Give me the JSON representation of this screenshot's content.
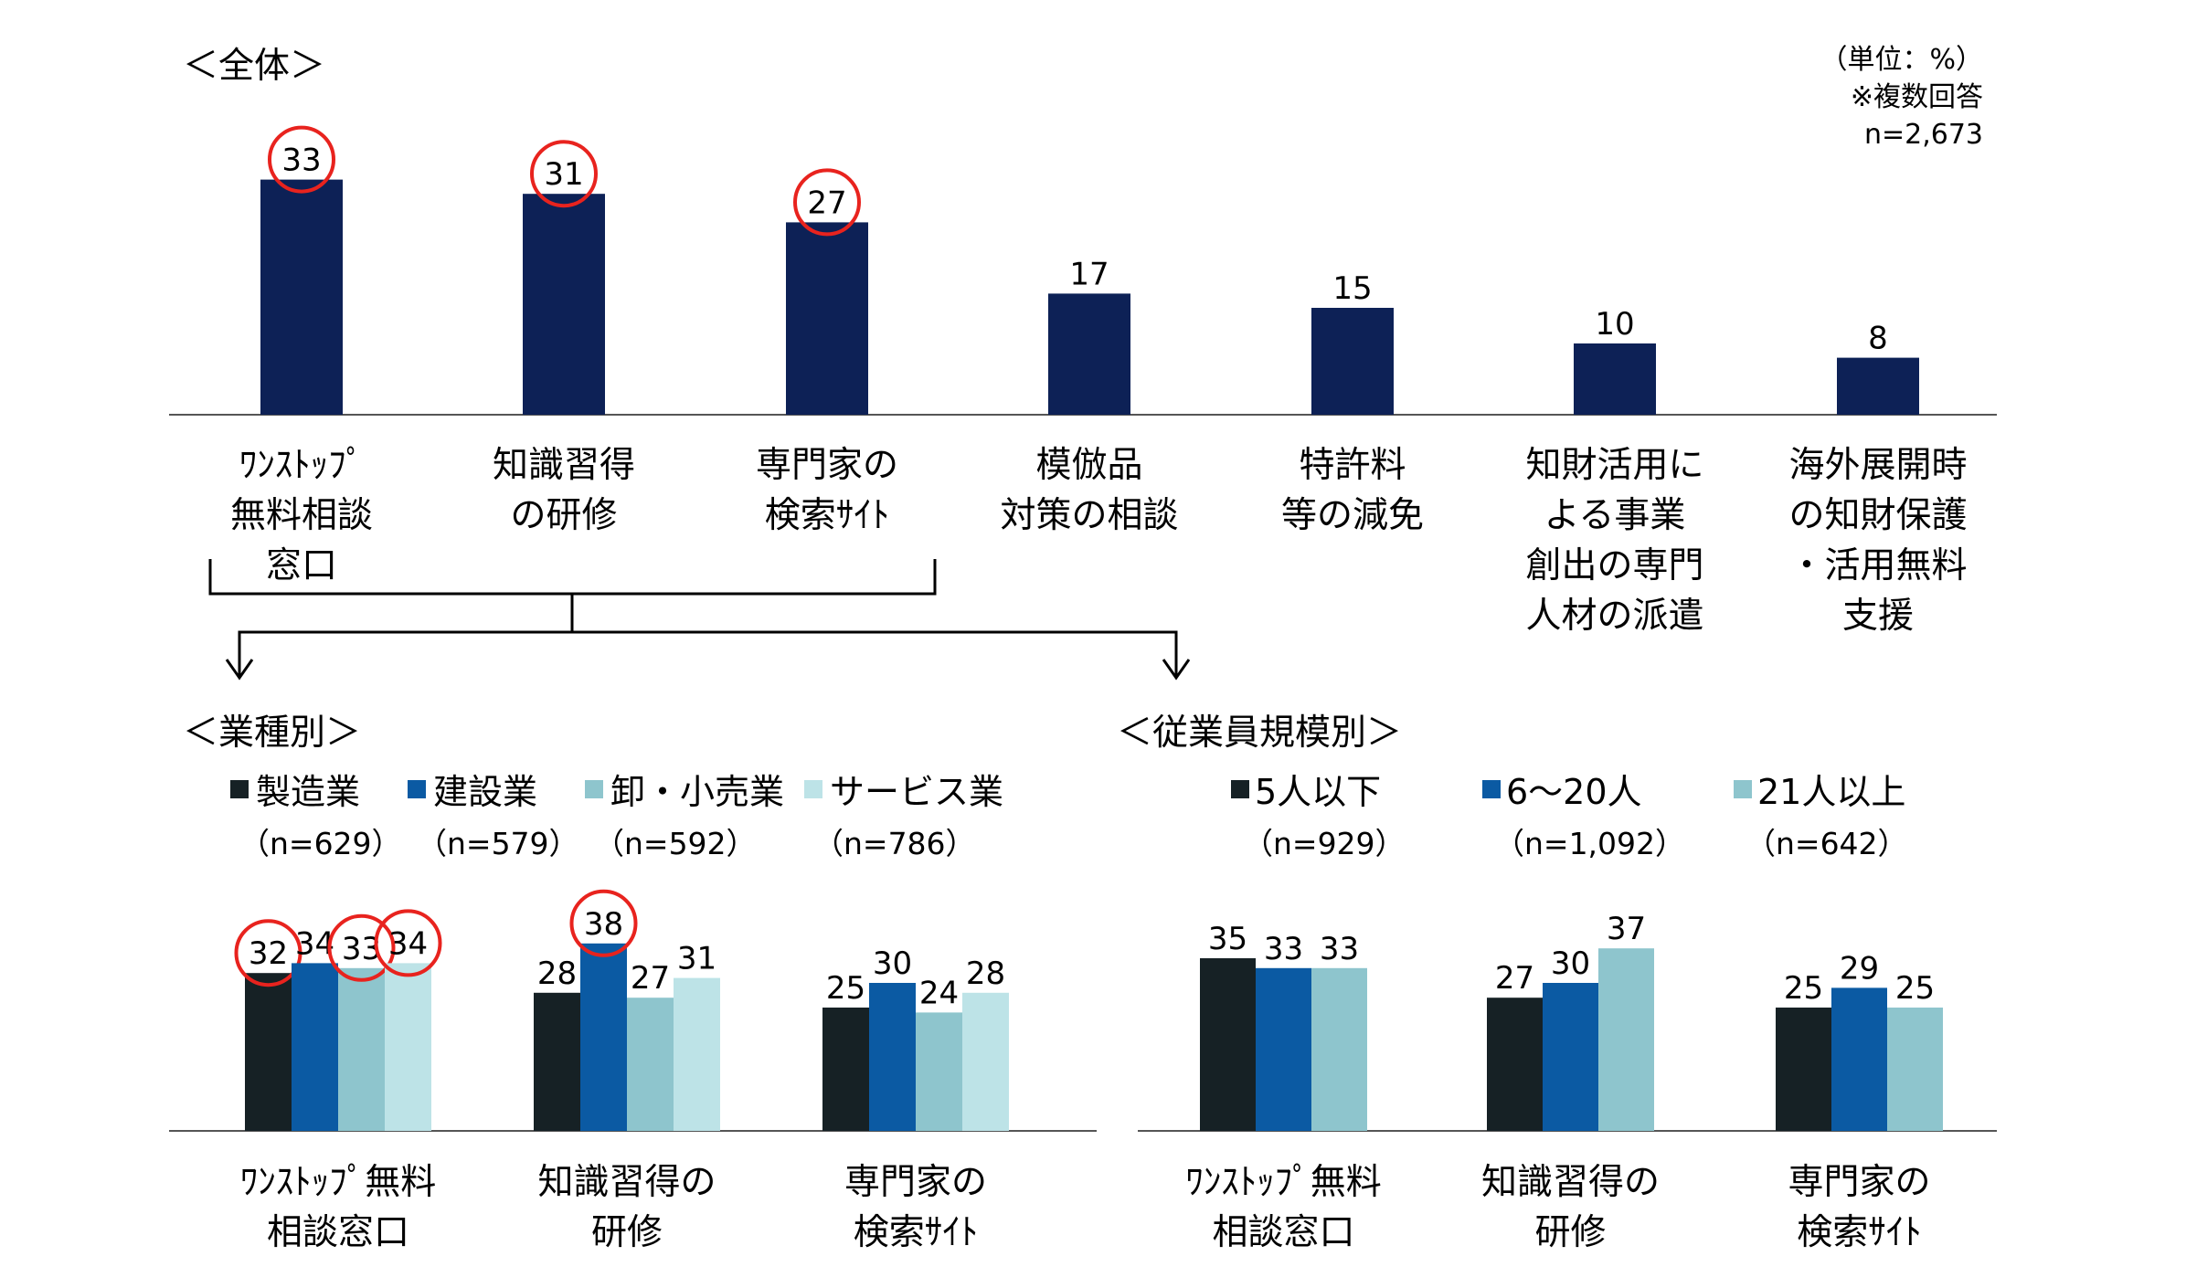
{
  "note": {
    "unit": "（単位：%）",
    "multiple": "※複数回答",
    "n": "n=2,673"
  },
  "chart_data": [
    {
      "type": "bar",
      "title": "＜全体＞",
      "categories": [
        [
          "ﾜﾝｽﾄｯﾌﾟ",
          "無料相談",
          "窓口"
        ],
        [
          "知識習得",
          "の研修"
        ],
        [
          "専門家の",
          "検索ｻｲﾄ"
        ],
        [
          "模倣品",
          "対策の相談"
        ],
        [
          "特許料",
          "等の減免"
        ],
        [
          "知財活用に",
          "よる事業",
          "創出の専門",
          "人材の派遣"
        ],
        [
          "海外展開時",
          "の知財保護",
          "・活用無料",
          "支援"
        ]
      ],
      "values": [
        33,
        31,
        27,
        17,
        15,
        10,
        8
      ],
      "circled": [
        true,
        true,
        true,
        false,
        false,
        false,
        false
      ],
      "colors": {
        "bar": "#0d2156",
        "circle": "#e8231e"
      },
      "ylim": [
        0,
        40
      ]
    },
    {
      "type": "bar",
      "title": "＜業種別＞",
      "categories": [
        [
          "ﾜﾝｽﾄｯﾌﾟ無料",
          "相談窓口"
        ],
        [
          "知識習得の",
          "研修"
        ],
        [
          "専門家の",
          "検索ｻｲﾄ"
        ]
      ],
      "series": [
        {
          "name": "製造業",
          "n": "（n=629）",
          "color": "#162125",
          "values": [
            32,
            28,
            25
          ],
          "circled": [
            true,
            false,
            false
          ]
        },
        {
          "name": "建設業",
          "n": "（n=579）",
          "color": "#0b5aa3",
          "values": [
            34,
            38,
            30
          ],
          "circled": [
            false,
            true,
            false
          ]
        },
        {
          "name": "卸・小売業",
          "n": "（n=592）",
          "color": "#8ec5cd",
          "values": [
            33,
            27,
            24
          ],
          "circled": [
            true,
            false,
            false
          ]
        },
        {
          "name": "サービス業",
          "n": "（n=786）",
          "color": "#bde3e7",
          "values": [
            34,
            31,
            28
          ],
          "circled": [
            true,
            false,
            false
          ]
        }
      ],
      "ylim": [
        0,
        40
      ]
    },
    {
      "type": "bar",
      "title": "＜従業員規模別＞",
      "categories": [
        [
          "ﾜﾝｽﾄｯﾌﾟ無料",
          "相談窓口"
        ],
        [
          "知識習得の",
          "研修"
        ],
        [
          "専門家の",
          "検索ｻｲﾄ"
        ]
      ],
      "series": [
        {
          "name": "5人以下",
          "n": "（n=929）",
          "color": "#162125",
          "values": [
            35,
            27,
            25
          ]
        },
        {
          "name": "6～20人",
          "n": "（n=1,092）",
          "color": "#0b5aa3",
          "values": [
            33,
            30,
            29
          ]
        },
        {
          "name": "21人以上",
          "n": "（n=642）",
          "color": "#8ec5cd",
          "values": [
            33,
            37,
            25
          ]
        }
      ],
      "ylim": [
        0,
        40
      ]
    }
  ]
}
